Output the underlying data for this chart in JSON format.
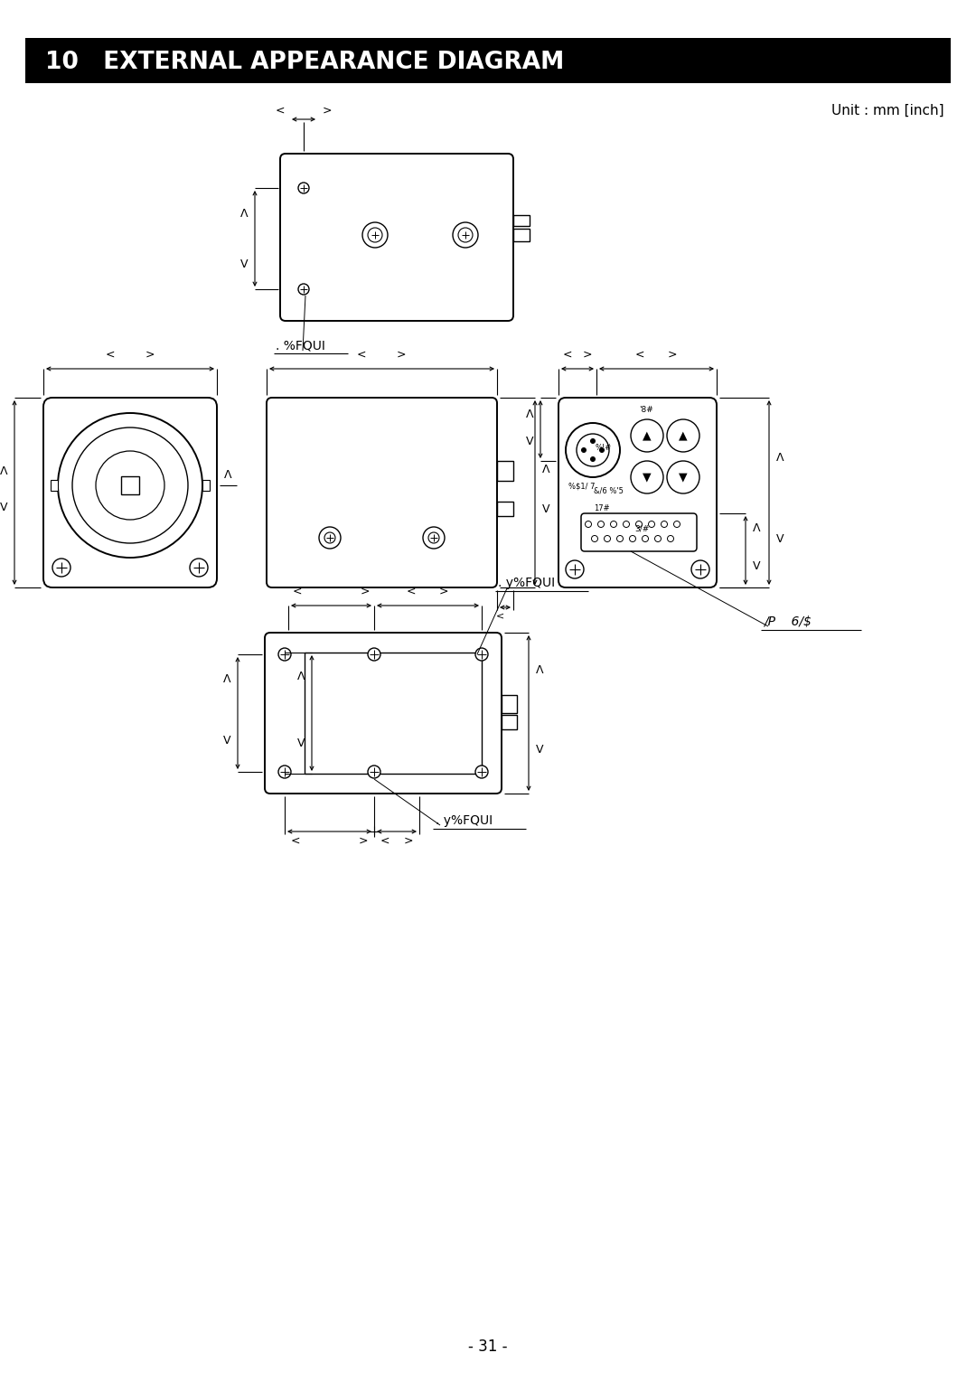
{
  "title": "10   EXTERNAL APPEARANCE DIAGRAM",
  "title_bg": "#000000",
  "title_color": "#ffffff",
  "unit_text": "Unit : mm [inch]",
  "page_number": "- 31 -",
  "bg_color": "#ffffff",
  "m3_label": ". %FQUI",
  "m2_top_label": ". y%FQUI",
  "m2_bot_label": ". y%FQUI",
  "connector_label": "/P    6/$"
}
